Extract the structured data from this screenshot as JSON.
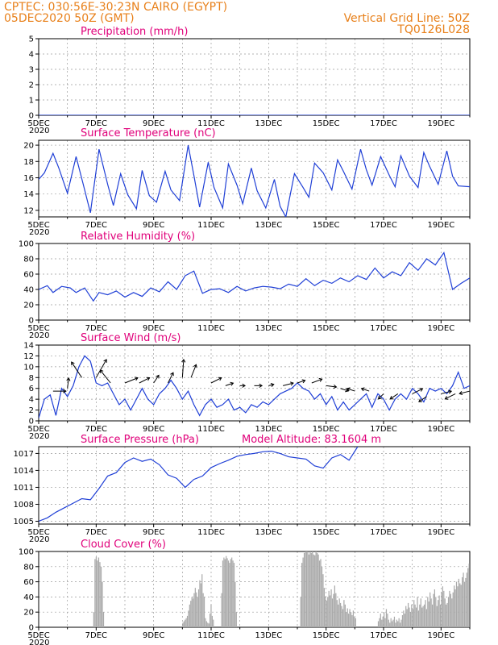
{
  "header": {
    "line1": "CPTEC:   030:56E-30:23N   CAIRO (EGYPT)",
    "line2": "05DEC2020 50Z (GMT)",
    "right1": "Vertical Grid Line: 50Z",
    "right2": "TQ0126L028"
  },
  "colors": {
    "header": "#e8801a",
    "title": "#e0007a",
    "series": "#1f3fd6",
    "cloud": "#aaaaaa",
    "arrow": "#000000"
  },
  "chart_data": [
    {
      "id": "precip",
      "type": "line",
      "title": "Precipitation (mm/h)",
      "xlim": [
        0,
        15
      ],
      "ylim": [
        0,
        5
      ],
      "yticks": [
        0,
        1,
        2,
        3,
        4,
        5
      ],
      "x": [
        0,
        15
      ],
      "values": [
        0,
        0
      ]
    },
    {
      "id": "temp",
      "type": "line",
      "title": "Surface Temperature (nC)",
      "xlim": [
        0,
        15
      ],
      "ylim": [
        11.2,
        20.6
      ],
      "yticks": [
        12,
        14,
        16,
        18,
        20
      ],
      "x": [
        0,
        0.2,
        0.5,
        0.7,
        1.0,
        1.3,
        1.55,
        1.8,
        2.1,
        2.4,
        2.6,
        2.85,
        3.1,
        3.4,
        3.6,
        3.85,
        4.1,
        4.4,
        4.6,
        4.9,
        5.2,
        5.4,
        5.6,
        5.9,
        6.1,
        6.4,
        6.6,
        6.9,
        7.1,
        7.4,
        7.6,
        7.9,
        8.2,
        8.4,
        8.6,
        8.9,
        9.2,
        9.4,
        9.6,
        9.9,
        10.2,
        10.4,
        10.6,
        10.9,
        11.2,
        11.4,
        11.6,
        11.9,
        12.2,
        12.4,
        12.6,
        12.9,
        13.2,
        13.4,
        13.6,
        13.9,
        14.2,
        14.4,
        14.6,
        15.0
      ],
      "values": [
        15.8,
        16.6,
        19.0,
        17.2,
        14.1,
        18.6,
        15.2,
        11.7,
        19.5,
        15.2,
        12.6,
        16.5,
        13.9,
        12.2,
        16.9,
        13.8,
        13.0,
        16.8,
        14.5,
        13.2,
        20.0,
        16.3,
        12.4,
        17.9,
        14.8,
        12.3,
        17.7,
        15.1,
        12.8,
        17.2,
        14.4,
        12.3,
        15.8,
        12.5,
        11.2,
        16.5,
        14.8,
        13.6,
        17.8,
        16.6,
        14.5,
        18.2,
        16.8,
        14.6,
        19.5,
        17.0,
        15.1,
        18.6,
        16.3,
        14.9,
        18.7,
        16.2,
        14.8,
        19.1,
        17.4,
        15.2,
        19.3,
        16.2,
        15.0,
        14.9
      ]
    },
    {
      "id": "rh",
      "type": "line",
      "title": "Relative Humidity (%)",
      "xlim": [
        0,
        15
      ],
      "ylim": [
        0,
        100
      ],
      "yticks": [
        0,
        20,
        40,
        60,
        80,
        100
      ],
      "x": [
        0,
        0.3,
        0.5,
        0.8,
        1.1,
        1.3,
        1.6,
        1.9,
        2.1,
        2.4,
        2.7,
        3.0,
        3.3,
        3.6,
        3.9,
        4.2,
        4.5,
        4.8,
        5.1,
        5.4,
        5.7,
        6.0,
        6.3,
        6.6,
        6.9,
        7.2,
        7.5,
        7.8,
        8.1,
        8.4,
        8.7,
        9.0,
        9.3,
        9.6,
        9.9,
        10.2,
        10.5,
        10.8,
        11.1,
        11.4,
        11.7,
        12.0,
        12.3,
        12.6,
        12.9,
        13.2,
        13.5,
        13.8,
        14.1,
        14.4,
        14.7,
        15.0
      ],
      "values": [
        40,
        45,
        36,
        44,
        42,
        36,
        42,
        25,
        36,
        33,
        38,
        30,
        36,
        31,
        42,
        37,
        50,
        40,
        58,
        64,
        35,
        40,
        41,
        36,
        44,
        38,
        42,
        44,
        43,
        41,
        47,
        44,
        54,
        45,
        52,
        48,
        55,
        50,
        58,
        53,
        68,
        55,
        63,
        58,
        75,
        65,
        80,
        72,
        88,
        40,
        48,
        55
      ]
    },
    {
      "id": "wind",
      "type": "line",
      "title": "Surface Wind (m/s)",
      "xlim": [
        0,
        15
      ],
      "ylim": [
        0,
        14
      ],
      "yticks": [
        0,
        2,
        4,
        6,
        8,
        10,
        12,
        14
      ],
      "x": [
        0,
        0.2,
        0.4,
        0.6,
        0.8,
        1.0,
        1.2,
        1.4,
        1.6,
        1.8,
        2.0,
        2.2,
        2.4,
        2.6,
        2.8,
        3.0,
        3.2,
        3.4,
        3.6,
        3.8,
        4.0,
        4.2,
        4.4,
        4.6,
        4.8,
        5.0,
        5.2,
        5.4,
        5.6,
        5.8,
        6.0,
        6.2,
        6.4,
        6.6,
        6.8,
        7.0,
        7.2,
        7.4,
        7.6,
        7.8,
        8.0,
        8.2,
        8.4,
        8.6,
        8.8,
        9.0,
        9.2,
        9.4,
        9.6,
        9.8,
        10.0,
        10.2,
        10.4,
        10.6,
        10.8,
        11.0,
        11.2,
        11.4,
        11.6,
        11.8,
        12.0,
        12.2,
        12.4,
        12.6,
        12.8,
        13.0,
        13.2,
        13.4,
        13.6,
        13.8,
        14.0,
        14.2,
        14.4,
        14.6,
        14.8,
        15.0
      ],
      "values": [
        0.5,
        4.0,
        4.8,
        1.0,
        6.0,
        4.5,
        6.5,
        10.0,
        12.0,
        11.0,
        7.0,
        6.5,
        7.0,
        5.0,
        3.0,
        4.0,
        2.0,
        4.0,
        6.0,
        4.0,
        3.0,
        5.0,
        6.0,
        7.5,
        6.0,
        4.0,
        5.5,
        3.0,
        1.0,
        3.0,
        4.0,
        2.5,
        3.0,
        4.0,
        2.0,
        2.5,
        1.5,
        3.0,
        2.5,
        3.5,
        3.0,
        4.0,
        5.0,
        5.5,
        6.0,
        7.0,
        6.0,
        5.5,
        4.0,
        5.0,
        3.0,
        4.5,
        2.0,
        3.5,
        2.0,
        3.0,
        4.0,
        5.0,
        2.5,
        5.0,
        4.0,
        2.0,
        4.0,
        5.0,
        4.0,
        6.0,
        5.0,
        3.5,
        6.0,
        5.5,
        6.0,
        5.0,
        6.5,
        9.0,
        6.0,
        6.5
      ],
      "vectors": [
        {
          "x": 0.5,
          "y": 5.5,
          "u": 5,
          "v": 0
        },
        {
          "x": 1.0,
          "y": 6.0,
          "u": 0.5,
          "v": 4
        },
        {
          "x": 1.5,
          "y": 8.0,
          "u": -4,
          "v": 6
        },
        {
          "x": 2.0,
          "y": 8.0,
          "u": 4,
          "v": 7
        },
        {
          "x": 2.5,
          "y": 7.0,
          "u": -4,
          "v": 5
        },
        {
          "x": 3.0,
          "y": 7.0,
          "u": 5,
          "v": 2
        },
        {
          "x": 3.5,
          "y": 7.0,
          "u": 4,
          "v": 2
        },
        {
          "x": 4.0,
          "y": 7.0,
          "u": 2,
          "v": 3
        },
        {
          "x": 4.5,
          "y": 7.0,
          "u": 2,
          "v": 4
        },
        {
          "x": 5.0,
          "y": 8.0,
          "u": 0.5,
          "v": 7
        },
        {
          "x": 5.3,
          "y": 8.0,
          "u": 2,
          "v": 5
        },
        {
          "x": 6.0,
          "y": 7.0,
          "u": 4,
          "v": 2
        },
        {
          "x": 6.5,
          "y": 6.5,
          "u": 3,
          "v": 1
        },
        {
          "x": 7.0,
          "y": 6.5,
          "u": 2,
          "v": 0
        },
        {
          "x": 7.5,
          "y": 6.5,
          "u": 3,
          "v": 0
        },
        {
          "x": 8.0,
          "y": 6.5,
          "u": 2,
          "v": 0.5
        },
        {
          "x": 8.5,
          "y": 6.5,
          "u": 4,
          "v": 1
        },
        {
          "x": 9.0,
          "y": 7.0,
          "u": 3,
          "v": 1
        },
        {
          "x": 9.5,
          "y": 7.0,
          "u": 4,
          "v": 1.5
        },
        {
          "x": 10.0,
          "y": 6.5,
          "u": 4,
          "v": -0.5
        },
        {
          "x": 10.5,
          "y": 6.0,
          "u": 3,
          "v": -1
        },
        {
          "x": 11.0,
          "y": 5.5,
          "u": -3,
          "v": 1
        },
        {
          "x": 11.5,
          "y": 5.5,
          "u": -3,
          "v": 1
        },
        {
          "x": 12.0,
          "y": 5.0,
          "u": -2,
          "v": -2
        },
        {
          "x": 12.5,
          "y": 5.0,
          "u": -3,
          "v": -2
        },
        {
          "x": 13.0,
          "y": 5.0,
          "u": 4,
          "v": 2
        },
        {
          "x": 13.5,
          "y": 4.5,
          "u": -3,
          "v": -2
        },
        {
          "x": 14.0,
          "y": 5.0,
          "u": 4,
          "v": 1
        },
        {
          "x": 14.5,
          "y": 5.0,
          "u": -4,
          "v": -2
        },
        {
          "x": 15.0,
          "y": 5.5,
          "u": -4,
          "v": -1
        }
      ]
    },
    {
      "id": "pres",
      "type": "line",
      "title": "Surface Pressure (hPa)",
      "annotation": "Model Altitude: 83.1604 m",
      "xlim": [
        0,
        15
      ],
      "ylim": [
        1004.5,
        1018.2
      ],
      "yticks": [
        1005,
        1008,
        1011,
        1014,
        1017
      ],
      "x": [
        0,
        0.3,
        0.6,
        0.9,
        1.2,
        1.5,
        1.8,
        2.1,
        2.4,
        2.7,
        3.0,
        3.3,
        3.6,
        3.9,
        4.2,
        4.5,
        4.8,
        5.1,
        5.4,
        5.7,
        6.0,
        6.3,
        6.6,
        6.9,
        7.2,
        7.5,
        7.8,
        8.1,
        8.4,
        8.7,
        9.0,
        9.3,
        9.6,
        9.9,
        10.2,
        10.5,
        10.8,
        11.1
      ],
      "values": [
        1005.0,
        1005.6,
        1006.6,
        1007.4,
        1008.2,
        1009.0,
        1008.8,
        1010.8,
        1013.0,
        1013.6,
        1015.4,
        1016.2,
        1015.6,
        1016.0,
        1015.0,
        1013.2,
        1012.6,
        1011.0,
        1012.4,
        1013.0,
        1014.5,
        1015.2,
        1015.8,
        1016.5,
        1016.8,
        1017.0,
        1017.3,
        1017.4,
        1017.0,
        1016.4,
        1016.2,
        1016.0,
        1014.8,
        1014.4,
        1016.2,
        1016.8,
        1015.8,
        1018.2
      ]
    },
    {
      "id": "cloud",
      "type": "bar",
      "title": "Cloud Cover (%)",
      "xlim": [
        0,
        15
      ],
      "ylim": [
        0,
        100
      ],
      "yticks": [
        0,
        20,
        40,
        60,
        80,
        100
      ],
      "segments": [
        {
          "x0": 1.9,
          "x1": 2.28,
          "values": [
            20,
            90,
            93,
            88,
            92,
            86,
            80,
            60,
            20
          ]
        },
        {
          "x0": 5.0,
          "x1": 5.55,
          "values": [
            6,
            8,
            10,
            12,
            15,
            22,
            30,
            35,
            40,
            38,
            45,
            52,
            46,
            40
          ]
        },
        {
          "x0": 5.55,
          "x1": 6.1,
          "values": [
            50,
            62,
            58,
            70,
            45,
            40,
            12,
            8,
            6,
            5,
            18,
            30,
            15,
            10
          ]
        },
        {
          "x0": 6.35,
          "x1": 6.9,
          "values": [
            45,
            88,
            92,
            90,
            94,
            91,
            88,
            85,
            90,
            92,
            88,
            85,
            60,
            20
          ]
        },
        {
          "x0": 9.1,
          "x1": 10.0,
          "values": [
            40,
            85,
            92,
            98,
            100,
            100,
            100,
            96,
            100,
            98,
            100,
            96,
            95,
            100,
            98,
            96,
            88,
            90,
            80,
            70,
            52,
            40
          ]
        },
        {
          "x0": 10.0,
          "x1": 11.05,
          "values": [
            35,
            40,
            48,
            42,
            50,
            38,
            44,
            55,
            45,
            36,
            30,
            38,
            32,
            28,
            24,
            36,
            30,
            20,
            25,
            18,
            24,
            20,
            16,
            22,
            14,
            12
          ]
        },
        {
          "x0": 11.8,
          "x1": 12.6,
          "values": [
            8,
            12,
            18,
            10,
            14,
            20,
            12,
            24,
            18,
            10,
            6,
            12,
            8,
            10,
            14,
            6,
            10,
            8,
            12,
            6
          ]
        },
        {
          "x0": 12.6,
          "x1": 13.4,
          "values": [
            10,
            16,
            22,
            18,
            28,
            24,
            32,
            26,
            20,
            30,
            24,
            36,
            30,
            26,
            40,
            22,
            30,
            38,
            26,
            28
          ]
        },
        {
          "x0": 13.4,
          "x1": 14.2,
          "values": [
            30,
            36,
            24,
            40,
            34,
            46,
            38,
            30,
            44,
            50,
            40,
            28,
            36,
            42,
            30,
            46,
            54,
            48,
            38,
            30
          ]
        },
        {
          "x0": 14.2,
          "x1": 15.0,
          "values": [
            32,
            40,
            48,
            44,
            38,
            46,
            55,
            50,
            60,
            54,
            64,
            58,
            56,
            66,
            72,
            60,
            65,
            72,
            78,
            84
          ]
        }
      ]
    }
  ],
  "xaxis": {
    "labels": [
      "5DEC",
      "7DEC",
      "9DEC",
      "11DEC",
      "13DEC",
      "15DEC",
      "17DEC",
      "19DEC"
    ],
    "positions": [
      0,
      2,
      4,
      6,
      8,
      10,
      12,
      14
    ],
    "year": "2020"
  }
}
